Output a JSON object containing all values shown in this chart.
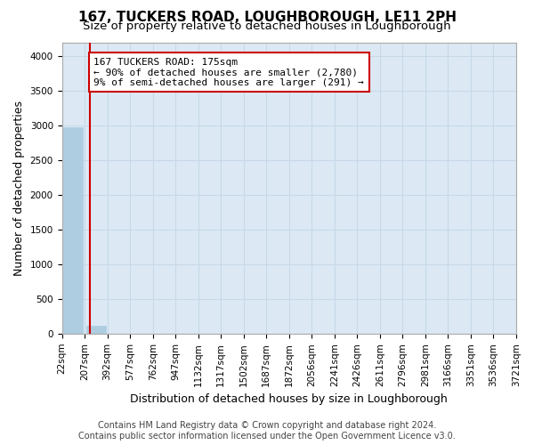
{
  "title": "167, TUCKERS ROAD, LOUGHBOROUGH, LE11 2PH",
  "subtitle": "Size of property relative to detached houses in Loughborough",
  "xlabel": "Distribution of detached houses by size in Loughborough",
  "ylabel": "Number of detached properties",
  "footer_line1": "Contains HM Land Registry data © Crown copyright and database right 2024.",
  "footer_line2": "Contains public sector information licensed under the Open Government Licence v3.0.",
  "tick_labels": [
    "22sqm",
    "207sqm",
    "392sqm",
    "577sqm",
    "762sqm",
    "947sqm",
    "1132sqm",
    "1317sqm",
    "1502sqm",
    "1687sqm",
    "1872sqm",
    "2056sqm",
    "2241sqm",
    "2426sqm",
    "2611sqm",
    "2796sqm",
    "2981sqm",
    "3166sqm",
    "3351sqm",
    "3536sqm",
    "3721sqm"
  ],
  "bar_values": [
    2980,
    115,
    2,
    1,
    0,
    0,
    0,
    0,
    0,
    0,
    0,
    0,
    0,
    0,
    0,
    0,
    0,
    0,
    0,
    0
  ],
  "bar_color": "#aecde0",
  "bar_edge_color": "#aecde0",
  "grid_color": "#c8d8e8",
  "background_color": "#dce9f5",
  "annotation_line1": "167 TUCKERS ROAD: 175sqm",
  "annotation_line2": "← 90% of detached houses are smaller (2,780)",
  "annotation_line3": "9% of semi-detached houses are larger (291) →",
  "annotation_box_color": "#cc0000",
  "vline_x": 0.72,
  "vline_color": "#cc0000",
  "ylim": [
    0,
    4200
  ],
  "yticks": [
    0,
    500,
    1000,
    1500,
    2000,
    2500,
    3000,
    3500,
    4000
  ],
  "title_fontsize": 11,
  "subtitle_fontsize": 9.5,
  "axis_label_fontsize": 9,
  "tick_fontsize": 7.5,
  "annotation_fontsize": 8,
  "footer_fontsize": 7
}
